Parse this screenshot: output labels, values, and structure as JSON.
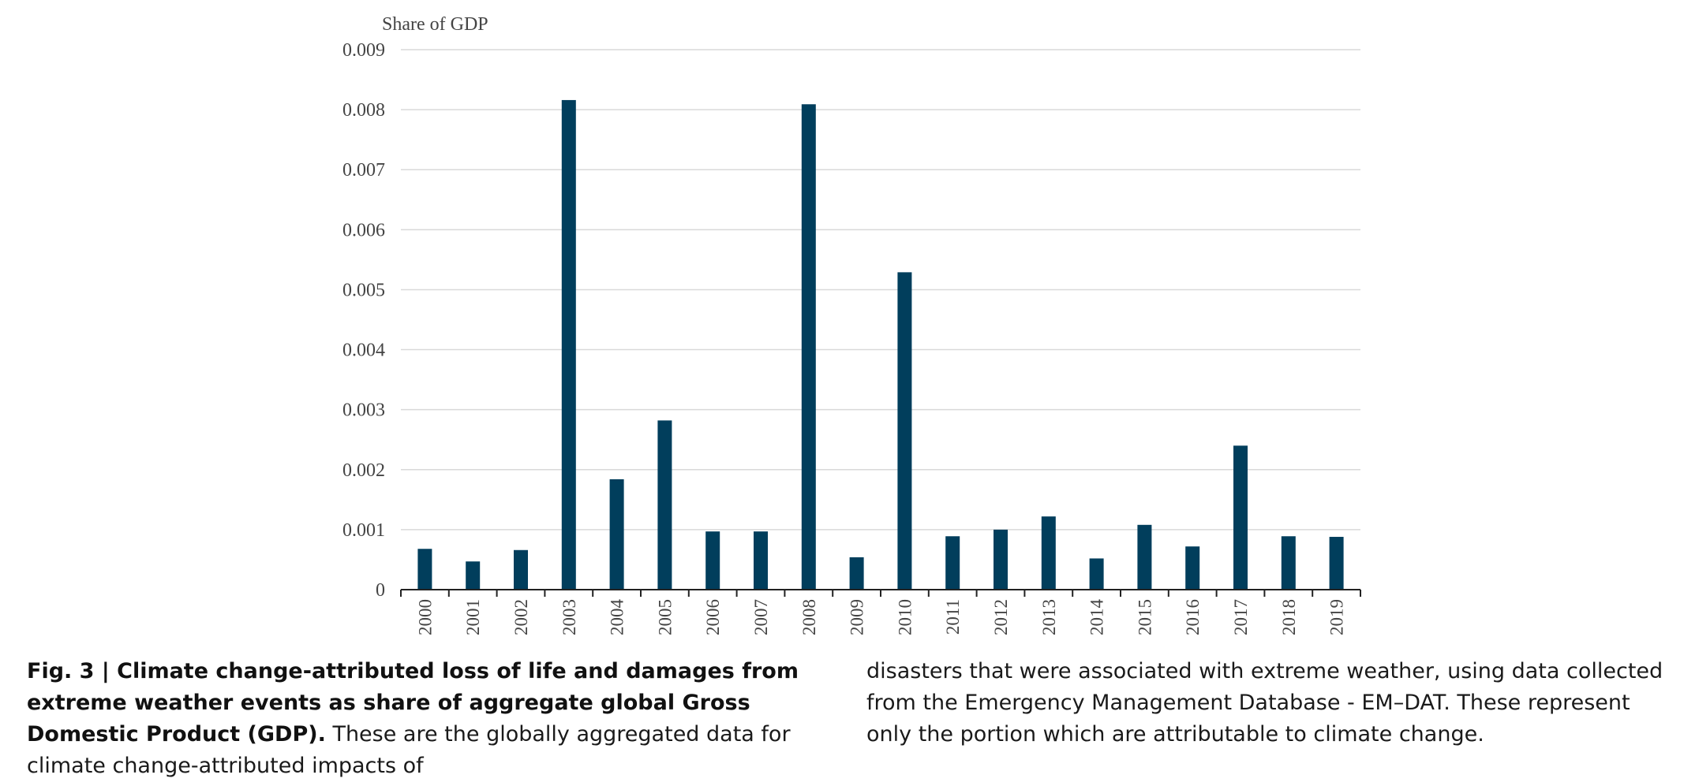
{
  "chart_data": {
    "type": "bar",
    "title": "",
    "xlabel": "",
    "ylabel": "Share of GDP",
    "ylim": [
      0,
      0.009
    ],
    "yticks": [
      "0",
      "0.001",
      "0.002",
      "0.003",
      "0.004",
      "0.005",
      "0.006",
      "0.007",
      "0.008",
      "0.009"
    ],
    "grid": true,
    "legend": "none",
    "bar_color": "#013e5c",
    "categories": [
      "2000",
      "2001",
      "2002",
      "2003",
      "2004",
      "2005",
      "2006",
      "2007",
      "2008",
      "2009",
      "2010",
      "2011",
      "2012",
      "2013",
      "2014",
      "2015",
      "2016",
      "2017",
      "2018",
      "2019"
    ],
    "values": [
      0.00068,
      0.00047,
      0.00066,
      0.00816,
      0.00184,
      0.00282,
      0.00097,
      0.00097,
      0.00809,
      0.00054,
      0.00529,
      0.00089,
      0.001,
      0.00122,
      0.00052,
      0.00108,
      0.00072,
      0.0024,
      0.00089,
      0.00088
    ]
  },
  "caption": {
    "title": "Fig. 3 | Climate change-attributed loss of life and damages from extreme weather events as share of aggregate global Gross Domestic Product (GDP).",
    "text_left": "These are the globally aggregated data for climate change-attributed impacts of",
    "text_right": "disasters that were associated with extreme weather, using data collected from the Emergency Management Database - EM–DAT. These represent only the portion which are attributable to climate change."
  }
}
